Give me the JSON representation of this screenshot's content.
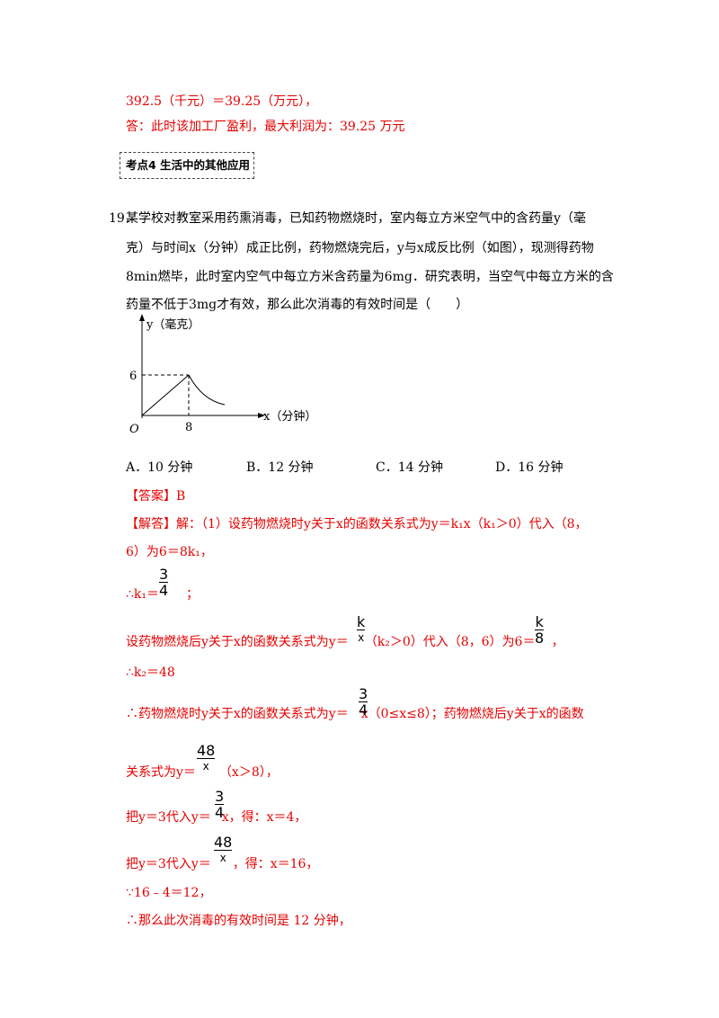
{
  "lines": {
    "l1": "392.5（千元）＝39.25（万元），",
    "l2": "答：此时该加工厂盈利，最大利润为：39.25 万元"
  },
  "tag": "考点4  生活中的其他应用",
  "question": {
    "number": "19．",
    "text1": "某学校对教室采用药熏消毒，已知药物燃烧时，室内每立方米空气中的含药量y（毫",
    "text2": "克）与时间x（分钟）成正比例，药物燃烧完后，y与x成反比例（如图），现测得药物",
    "text3": "8min燃毕，此时室内空气中每立方米含药量为6mg．研究表明，当空气中每立方米的含",
    "text4": "药量不低于3mg才有效，那么此次消毒的有效时间是（　　）"
  },
  "graph": {
    "y_axis_label": "y（毫克）",
    "x_axis_label": "x（分钟）",
    "origin": "O",
    "y_tick": "6",
    "x_tick": "8"
  },
  "options": {
    "A": "A．10 分钟",
    "B": "B．12 分钟",
    "C": "C．14 分钟",
    "D": "D．16 分钟"
  },
  "answer": {
    "label": "【答案】B",
    "sol1": "【解答】解：（1）设药物燃烧时y关于x的函数关系式为y＝k₁x（k₁＞0）代入（8，",
    "sol2": "6）为6＝8k₁，",
    "sol3_pre": "∴k₁＝",
    "sol3_post": "；",
    "sol4_pre": "设药物燃烧后y关于x的函数关系式为y＝",
    "sol4_mid": "（k₂＞0）代入（8，6）为6＝",
    "sol4_post": "，",
    "sol5": "∴k₂＝48",
    "sol6_pre": "∴药物燃烧时y关于x的函数关系式为y＝",
    "sol6_post": "x（0≤x≤8）；药物燃烧后y关于x的函数",
    "sol7_pre": "关系式为y＝",
    "sol7_post": "（x＞8），",
    "sol8_pre": "把y＝3代入y＝",
    "sol8_post": "x，得：x＝4，",
    "sol9_pre": "把y＝3代入y＝",
    "sol9_post": "，得：x＝16，",
    "sol10": "∵16﹣4＝12，",
    "sol11": "∴那么此次消毒的有效时间是 12 分钟，"
  },
  "fracs": {
    "f34_num": "3",
    "f34_den": "4",
    "fk_num": "k",
    "fk_den": "x",
    "fk8_num": "k",
    "fk8_den": "8",
    "f34b_num": "3",
    "f34b_den": "4",
    "f48_num": "48",
    "f48_den": "x",
    "f34c_num": "3",
    "f34c_den": "4",
    "f48b_num": "48",
    "f48b_den": "x"
  }
}
